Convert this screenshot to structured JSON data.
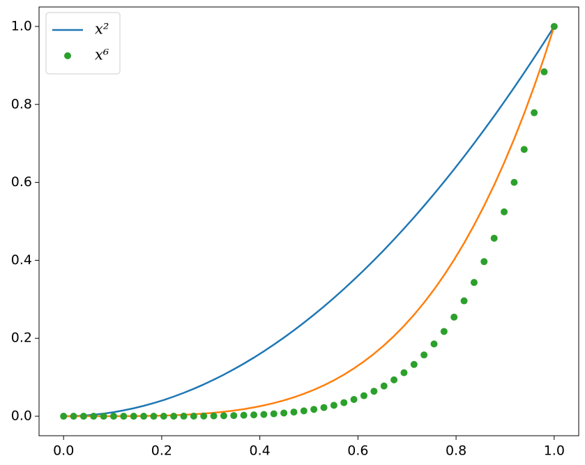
{
  "chart_data": {
    "type": "line",
    "x": [
      0,
      0.0204,
      0.0408,
      0.0612,
      0.0816,
      0.102,
      0.1224,
      0.1429,
      0.1633,
      0.1837,
      0.2041,
      0.2245,
      0.2449,
      0.2653,
      0.2857,
      0.3061,
      0.3265,
      0.3469,
      0.3673,
      0.3878,
      0.4082,
      0.4286,
      0.449,
      0.4694,
      0.4898,
      0.5102,
      0.5306,
      0.551,
      0.5714,
      0.5918,
      0.6122,
      0.6327,
      0.6531,
      0.6735,
      0.6939,
      0.7143,
      0.7347,
      0.7551,
      0.7755,
      0.7959,
      0.8163,
      0.8367,
      0.8571,
      0.8776,
      0.898,
      0.9184,
      0.9388,
      0.9592,
      0.9796,
      1
    ],
    "series": [
      {
        "name": "x²",
        "color": "#1f77b4",
        "style": "line",
        "values": [
          0,
          0.0004,
          0.0017,
          0.0037,
          0.0067,
          0.0104,
          0.015,
          0.0204,
          0.0267,
          0.0337,
          0.0416,
          0.0504,
          0.06,
          0.0704,
          0.0816,
          0.0937,
          0.1066,
          0.1204,
          0.1349,
          0.1503,
          0.1666,
          0.1837,
          0.2016,
          0.2203,
          0.2399,
          0.2603,
          0.2815,
          0.3036,
          0.3265,
          0.3503,
          0.3748,
          0.4003,
          0.4265,
          0.4536,
          0.4815,
          0.5102,
          0.5398,
          0.5702,
          0.6014,
          0.6335,
          0.6664,
          0.7001,
          0.7347,
          0.7701,
          0.8064,
          0.8434,
          0.8813,
          0.92,
          0.9596,
          1
        ]
      },
      {
        "color": "#ff7f0e",
        "style": "line",
        "values": [
          0,
          0,
          0,
          0,
          0,
          0.0001,
          0.0002,
          0.0004,
          0.0007,
          0.0011,
          0.0017,
          0.0025,
          0.0036,
          0.005,
          0.0067,
          0.0088,
          0.0114,
          0.0145,
          0.0182,
          0.0226,
          0.0278,
          0.0337,
          0.0406,
          0.0485,
          0.0576,
          0.0678,
          0.0793,
          0.0922,
          0.1066,
          0.1227,
          0.1405,
          0.1602,
          0.1819,
          0.2057,
          0.2318,
          0.2603,
          0.2914,
          0.3251,
          0.3617,
          0.4013,
          0.4441,
          0.4902,
          0.5398,
          0.5931,
          0.6503,
          0.7113,
          0.7767,
          0.8464,
          0.9208,
          1
        ]
      },
      {
        "name": "x⁶",
        "color": "#2ca02c",
        "style": "marker",
        "values": [
          0,
          0,
          0,
          0,
          0,
          0,
          0,
          0,
          0,
          0,
          0.0001,
          0.0001,
          0.0002,
          0.0003,
          0.0005,
          0.0008,
          0.0012,
          0.0017,
          0.0025,
          0.0034,
          0.0046,
          0.0062,
          0.0082,
          0.0107,
          0.0138,
          0.0176,
          0.0223,
          0.028,
          0.0348,
          0.043,
          0.0527,
          0.0641,
          0.0776,
          0.0933,
          0.1116,
          0.1328,
          0.1573,
          0.1854,
          0.2175,
          0.2542,
          0.296,
          0.3432,
          0.3966,
          0.4567,
          0.5244,
          0.5999,
          0.6845,
          0.7787,
          0.8836,
          1
        ]
      }
    ],
    "xlim": [
      -0.05,
      1.05
    ],
    "ylim": [
      -0.05,
      1.05
    ],
    "xticks": [
      {
        "value": 0,
        "label": "0.0"
      },
      0.2,
      0.4,
      0.6,
      0.8,
      {
        "value": 1,
        "label": "1.0"
      }
    ],
    "yticks": [
      {
        "value": 0,
        "label": "0.0"
      },
      0.2,
      0.4,
      0.6,
      0.8,
      {
        "value": 1,
        "label": "1.0"
      }
    ],
    "legend": "upper left"
  }
}
